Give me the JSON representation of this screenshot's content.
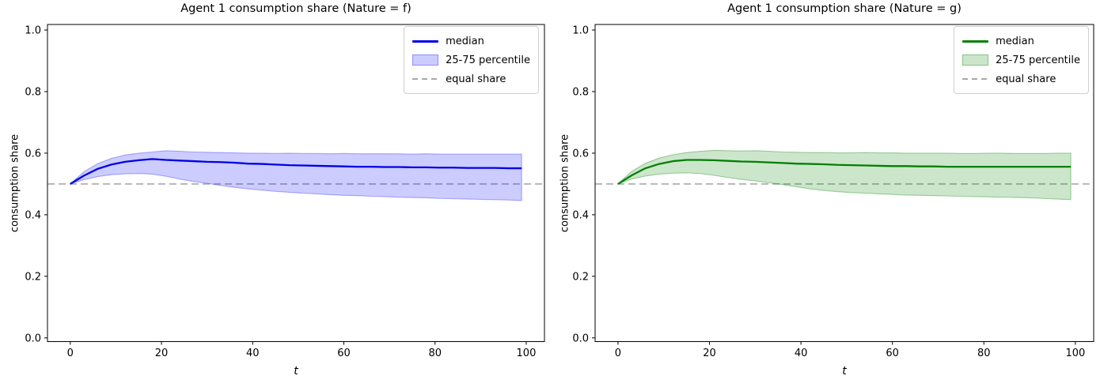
{
  "figure": {
    "background": "#ffffff"
  },
  "chart_data": [
    {
      "type": "line",
      "title": "Agent 1 consumption share (Nature = f)",
      "xlabel": "t",
      "ylabel": "consumption share",
      "legend_labels": [
        "median",
        "25-75 percentile",
        "equal share"
      ],
      "legend_position": "upper right",
      "grid": false,
      "xlim": [
        -5,
        104
      ],
      "ylim": [
        -0.012,
        1.018
      ],
      "xticks": [
        "0",
        "20",
        "40",
        "60",
        "80",
        "100"
      ],
      "yticks": [
        "0.0",
        "0.2",
        "0.4",
        "0.6",
        "0.8",
        "1.0"
      ],
      "equal_share_value": 0.5,
      "colors": {
        "median": "#0000e6",
        "band": "#0000ff",
        "band_fill_alpha": 0.2,
        "band_edge_alpha": 0.3,
        "equal_share": "#a9a9a9",
        "spine": "#000000"
      },
      "x": [
        0,
        3,
        6,
        9,
        12,
        15,
        18,
        21,
        24,
        27,
        30,
        33,
        36,
        39,
        42,
        45,
        48,
        51,
        54,
        57,
        60,
        63,
        66,
        69,
        72,
        75,
        78,
        81,
        84,
        87,
        90,
        93,
        96,
        99
      ],
      "series": [
        {
          "name": "median",
          "values": [
            0.5,
            0.527,
            0.549,
            0.563,
            0.572,
            0.577,
            0.581,
            0.578,
            0.576,
            0.574,
            0.572,
            0.571,
            0.569,
            0.566,
            0.565,
            0.563,
            0.561,
            0.56,
            0.559,
            0.558,
            0.557,
            0.556,
            0.556,
            0.555,
            0.555,
            0.554,
            0.554,
            0.553,
            0.553,
            0.552,
            0.552,
            0.552,
            0.551,
            0.551
          ]
        },
        {
          "name": "p25",
          "values": [
            0.5,
            0.514,
            0.524,
            0.53,
            0.533,
            0.534,
            0.532,
            0.525,
            0.516,
            0.508,
            0.502,
            0.495,
            0.489,
            0.484,
            0.48,
            0.476,
            0.473,
            0.47,
            0.468,
            0.465,
            0.463,
            0.462,
            0.46,
            0.459,
            0.457,
            0.456,
            0.455,
            0.453,
            0.452,
            0.451,
            0.45,
            0.449,
            0.448,
            0.446
          ]
        },
        {
          "name": "p75",
          "values": [
            0.5,
            0.54,
            0.566,
            0.583,
            0.594,
            0.6,
            0.604,
            0.608,
            0.606,
            0.604,
            0.603,
            0.602,
            0.601,
            0.6,
            0.6,
            0.599,
            0.6,
            0.599,
            0.599,
            0.598,
            0.599,
            0.598,
            0.598,
            0.598,
            0.598,
            0.597,
            0.598,
            0.597,
            0.597,
            0.597,
            0.597,
            0.597,
            0.597,
            0.597
          ]
        }
      ]
    },
    {
      "type": "line",
      "title": "Agent 1 consumption share (Nature = g)",
      "xlabel": "t",
      "ylabel": "consumption share",
      "legend_labels": [
        "median",
        "25-75 percentile",
        "equal share"
      ],
      "legend_position": "upper right",
      "grid": false,
      "xlim": [
        -5,
        104
      ],
      "ylim": [
        -0.012,
        1.018
      ],
      "xticks": [
        "0",
        "20",
        "40",
        "60",
        "80",
        "100"
      ],
      "yticks": [
        "0.0",
        "0.2",
        "0.4",
        "0.6",
        "0.8",
        "1.0"
      ],
      "equal_share_value": 0.5,
      "colors": {
        "median": "#008000",
        "band": "#008000",
        "band_fill_alpha": 0.2,
        "band_edge_alpha": 0.35,
        "equal_share": "#a9a9a9",
        "spine": "#000000"
      },
      "x": [
        0,
        3,
        6,
        9,
        12,
        15,
        18,
        21,
        24,
        27,
        30,
        33,
        36,
        39,
        42,
        45,
        48,
        51,
        54,
        57,
        60,
        63,
        66,
        69,
        72,
        75,
        78,
        81,
        84,
        87,
        90,
        93,
        96,
        99
      ],
      "series": [
        {
          "name": "median",
          "values": [
            0.5,
            0.528,
            0.551,
            0.565,
            0.574,
            0.578,
            0.578,
            0.577,
            0.575,
            0.573,
            0.572,
            0.57,
            0.568,
            0.566,
            0.565,
            0.564,
            0.562,
            0.561,
            0.56,
            0.559,
            0.558,
            0.558,
            0.557,
            0.557,
            0.556,
            0.556,
            0.556,
            0.556,
            0.556,
            0.556,
            0.556,
            0.556,
            0.556,
            0.556
          ]
        },
        {
          "name": "p25",
          "values": [
            0.5,
            0.516,
            0.526,
            0.532,
            0.535,
            0.536,
            0.534,
            0.528,
            0.521,
            0.515,
            0.51,
            0.504,
            0.498,
            0.491,
            0.484,
            0.479,
            0.475,
            0.472,
            0.47,
            0.468,
            0.466,
            0.464,
            0.463,
            0.462,
            0.461,
            0.46,
            0.459,
            0.458,
            0.457,
            0.456,
            0.455,
            0.453,
            0.451,
            0.449
          ]
        },
        {
          "name": "p75",
          "values": [
            0.5,
            0.541,
            0.567,
            0.584,
            0.595,
            0.602,
            0.606,
            0.609,
            0.608,
            0.607,
            0.608,
            0.606,
            0.604,
            0.603,
            0.602,
            0.602,
            0.601,
            0.601,
            0.602,
            0.601,
            0.601,
            0.6,
            0.6,
            0.6,
            0.6,
            0.599,
            0.599,
            0.6,
            0.6,
            0.599,
            0.599,
            0.599,
            0.6,
            0.6
          ]
        }
      ]
    }
  ]
}
